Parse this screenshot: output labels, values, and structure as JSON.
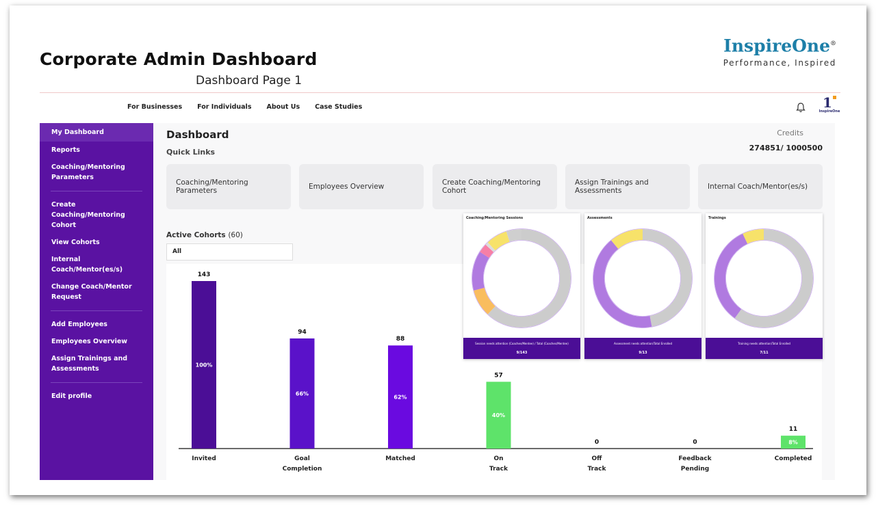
{
  "page": {
    "title": "Corporate Admin Dashboard",
    "subtitle": "Dashboard Page 1"
  },
  "brand": {
    "name": "InspireOne",
    "registered": "®",
    "tagline": "Performance, Inspired",
    "mini_logo_text": "InspireOne",
    "color": "#1d7fa8"
  },
  "topnav": {
    "items": [
      "For Businesses",
      "For Individuals",
      "About Us",
      "Case Studies"
    ]
  },
  "sidebar": {
    "color": "#5a12a2",
    "items": [
      {
        "label": "My Dashboard"
      },
      {
        "label": "Reports"
      },
      {
        "label": "Coaching/Mentoring Parameters"
      },
      {
        "label": "Create Coaching/Mentoring Cohort"
      },
      {
        "label": "View Cohorts"
      },
      {
        "label": "Internal Coach/Mentor(es/s)"
      },
      {
        "label": "Change Coach/Mentor Request"
      },
      {
        "label": "Add Employees"
      },
      {
        "label": "Employees Overview"
      },
      {
        "label": "Assign Trainings and Assessments"
      },
      {
        "label": "Edit profile"
      }
    ]
  },
  "main": {
    "title": "Dashboard",
    "quick_links_label": "Quick Links",
    "credits_label": "Credits",
    "credits_value": "274851/ 1000500",
    "quick_links": [
      {
        "label": "Coaching/Mentoring Parameters"
      },
      {
        "label": "Employees Overview"
      },
      {
        "label": "Create Coaching/Mentoring Cohort"
      },
      {
        "label": "Assign Trainings and Assessments"
      },
      {
        "label": "Internal Coach/Mentor(es/s)"
      }
    ],
    "active_cohorts_label": "Active Cohorts",
    "active_cohorts_count": "(60)",
    "cohort_filter_value": "All"
  },
  "chart_data": [
    {
      "type": "bar",
      "categories": [
        "Invited",
        "Goal Completion",
        "Matched",
        "On Track",
        "Off Track",
        "Feedback Pending",
        "Completed"
      ],
      "values": [
        143,
        94,
        88,
        57,
        0,
        0,
        11
      ],
      "percent_labels": [
        "100%",
        "66%",
        "62%",
        "40%",
        "",
        "",
        "8%"
      ],
      "colors": [
        "#4b0e96",
        "#5a12c9",
        "#6a0ae0",
        "#5ee36a",
        "#5ee36a",
        "#5ee36a",
        "#5ee36a"
      ]
    },
    {
      "type": "pie",
      "title": "Coaching/Mentoring Sessions",
      "footer_label": "Session needs attention (Coaches/Mentee) / Total (Coaches/Mentee)",
      "footer_value": "9/143",
      "slices": [
        {
          "value": 62,
          "color": "#cccccc"
        },
        {
          "value": 9,
          "color": "#f9bd5e"
        },
        {
          "value": 13,
          "color": "#b07ae0"
        },
        {
          "value": 3,
          "color": "#f77fa6"
        },
        {
          "value": 1,
          "color": "#dcdcdc"
        },
        {
          "value": 7,
          "color": "#f7e26a"
        },
        {
          "value": 5,
          "color": "#cfcfcf"
        }
      ]
    },
    {
      "type": "pie",
      "title": "Assessments",
      "footer_label": "Assessment needs attention/Total Enrolled",
      "footer_value": "9/13",
      "slices": [
        {
          "value": 47,
          "color": "#cccccc"
        },
        {
          "value": 42,
          "color": "#b07ae0"
        },
        {
          "value": 11,
          "color": "#f7e26a"
        }
      ]
    },
    {
      "type": "pie",
      "title": "Trainings",
      "footer_label": "Training needs attention/Total Enrolled",
      "footer_value": "7/11",
      "slices": [
        {
          "value": 60,
          "color": "#cccccc"
        },
        {
          "value": 33,
          "color": "#b07ae0"
        },
        {
          "value": 7,
          "color": "#f7e26a"
        }
      ]
    }
  ]
}
